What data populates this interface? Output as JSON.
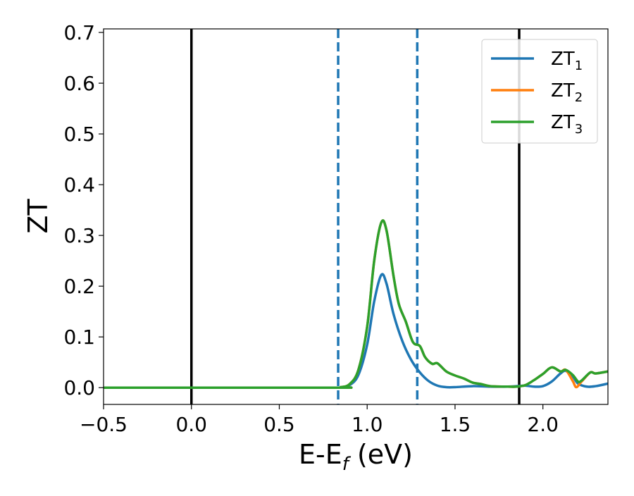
{
  "chart_data": {
    "type": "line",
    "xlabel": "E-E",
    "xlabel_subscript": "f",
    "xlabel_suffix": " (eV)",
    "ylabel": "ZT",
    "xlim": [
      -0.5,
      2.37
    ],
    "ylim": [
      -0.033,
      0.707
    ],
    "xticks": [
      -0.5,
      0.0,
      0.5,
      1.0,
      1.5,
      2.0
    ],
    "xtick_labels": [
      "−0.5",
      "0.0",
      "0.5",
      "1.0",
      "1.5",
      "2.0"
    ],
    "yticks": [
      0.0,
      0.1,
      0.2,
      0.3,
      0.4,
      0.5,
      0.6,
      0.7
    ],
    "ytick_labels": [
      "0.0",
      "0.1",
      "0.2",
      "0.3",
      "0.4",
      "0.5",
      "0.6",
      "0.7"
    ],
    "grid": false,
    "legend_position": "top-right",
    "vertical_lines": [
      {
        "x": 0.0,
        "style": "solid",
        "color": "#000000"
      },
      {
        "x": 1.865,
        "style": "solid",
        "color": "#000000"
      },
      {
        "x": 0.835,
        "style": "dashed",
        "color": "#1f77b4"
      },
      {
        "x": 1.285,
        "style": "dashed",
        "color": "#1f77b4"
      }
    ],
    "series": [
      {
        "name": "ZT",
        "name_subscript": "1",
        "color": "#1f77b4",
        "points": [
          [
            -0.5,
            0
          ],
          [
            0.8,
            0
          ],
          [
            0.85,
            0.001
          ],
          [
            0.9,
            0.005
          ],
          [
            0.95,
            0.025
          ],
          [
            1.0,
            0.085
          ],
          [
            1.04,
            0.17
          ],
          [
            1.08,
            0.222
          ],
          [
            1.11,
            0.205
          ],
          [
            1.15,
            0.145
          ],
          [
            1.2,
            0.092
          ],
          [
            1.25,
            0.055
          ],
          [
            1.3,
            0.03
          ],
          [
            1.35,
            0.013
          ],
          [
            1.4,
            0.004
          ],
          [
            1.45,
            0.001
          ],
          [
            1.5,
            0.001
          ],
          [
            1.6,
            0.003
          ],
          [
            1.7,
            0.002
          ],
          [
            1.8,
            0.002
          ],
          [
            1.85,
            0.003
          ],
          [
            1.9,
            0.004
          ],
          [
            1.95,
            0.002
          ],
          [
            2.0,
            0.003
          ],
          [
            2.05,
            0.012
          ],
          [
            2.1,
            0.028
          ],
          [
            2.13,
            0.033
          ],
          [
            2.17,
            0.022
          ],
          [
            2.2,
            0.008
          ],
          [
            2.25,
            0.002
          ],
          [
            2.3,
            0.003
          ],
          [
            2.37,
            0.008
          ]
        ]
      },
      {
        "name": "ZT",
        "name_subscript": "2",
        "color": "#ff7f0e",
        "points": [
          [
            -0.5,
            0
          ],
          [
            0.8,
            0
          ],
          [
            0.85,
            0.001
          ],
          [
            0.9,
            0.007
          ],
          [
            0.95,
            0.035
          ],
          [
            1.0,
            0.12
          ],
          [
            1.04,
            0.25
          ],
          [
            1.08,
            0.325
          ],
          [
            1.11,
            0.31
          ],
          [
            1.15,
            0.22
          ],
          [
            1.18,
            0.165
          ],
          [
            1.22,
            0.13
          ],
          [
            1.26,
            0.09
          ],
          [
            1.3,
            0.082
          ],
          [
            1.33,
            0.06
          ],
          [
            1.37,
            0.047
          ],
          [
            1.4,
            0.048
          ],
          [
            1.45,
            0.032
          ],
          [
            1.5,
            0.024
          ],
          [
            1.55,
            0.018
          ],
          [
            1.6,
            0.01
          ],
          [
            1.65,
            0.007
          ],
          [
            1.7,
            0.003
          ],
          [
            1.8,
            0.002
          ],
          [
            1.85,
            0.002
          ],
          [
            1.9,
            0.005
          ],
          [
            1.95,
            0.015
          ],
          [
            2.0,
            0.027
          ],
          [
            2.05,
            0.04
          ],
          [
            2.1,
            0.032
          ],
          [
            2.13,
            0.035
          ],
          [
            2.17,
            0.013
          ],
          [
            2.19,
            0.001
          ],
          [
            2.22,
            0.012
          ],
          [
            2.27,
            0.03
          ],
          [
            2.3,
            0.028
          ],
          [
            2.37,
            0.032
          ]
        ]
      },
      {
        "name": "ZT",
        "name_subscript": "3",
        "color": "#2ca02c",
        "points": [
          [
            -0.5,
            0
          ],
          [
            0.8,
            0
          ],
          [
            0.85,
            0.001
          ],
          [
            0.9,
            0.007
          ],
          [
            0.95,
            0.035
          ],
          [
            1.0,
            0.12
          ],
          [
            1.04,
            0.25
          ],
          [
            1.08,
            0.325
          ],
          [
            1.11,
            0.31
          ],
          [
            1.15,
            0.22
          ],
          [
            1.18,
            0.165
          ],
          [
            1.22,
            0.13
          ],
          [
            1.26,
            0.09
          ],
          [
            1.3,
            0.082
          ],
          [
            1.33,
            0.06
          ],
          [
            1.37,
            0.047
          ],
          [
            1.4,
            0.048
          ],
          [
            1.45,
            0.032
          ],
          [
            1.5,
            0.024
          ],
          [
            1.55,
            0.018
          ],
          [
            1.6,
            0.01
          ],
          [
            1.65,
            0.007
          ],
          [
            1.7,
            0.003
          ],
          [
            1.8,
            0.002
          ],
          [
            1.85,
            0.002
          ],
          [
            1.9,
            0.005
          ],
          [
            1.95,
            0.015
          ],
          [
            2.0,
            0.027
          ],
          [
            2.05,
            0.04
          ],
          [
            2.1,
            0.032
          ],
          [
            2.13,
            0.035
          ],
          [
            2.17,
            0.025
          ],
          [
            2.2,
            0.012
          ],
          [
            2.22,
            0.014
          ],
          [
            2.27,
            0.03
          ],
          [
            2.3,
            0.028
          ],
          [
            2.37,
            0.032
          ]
        ]
      }
    ]
  }
}
